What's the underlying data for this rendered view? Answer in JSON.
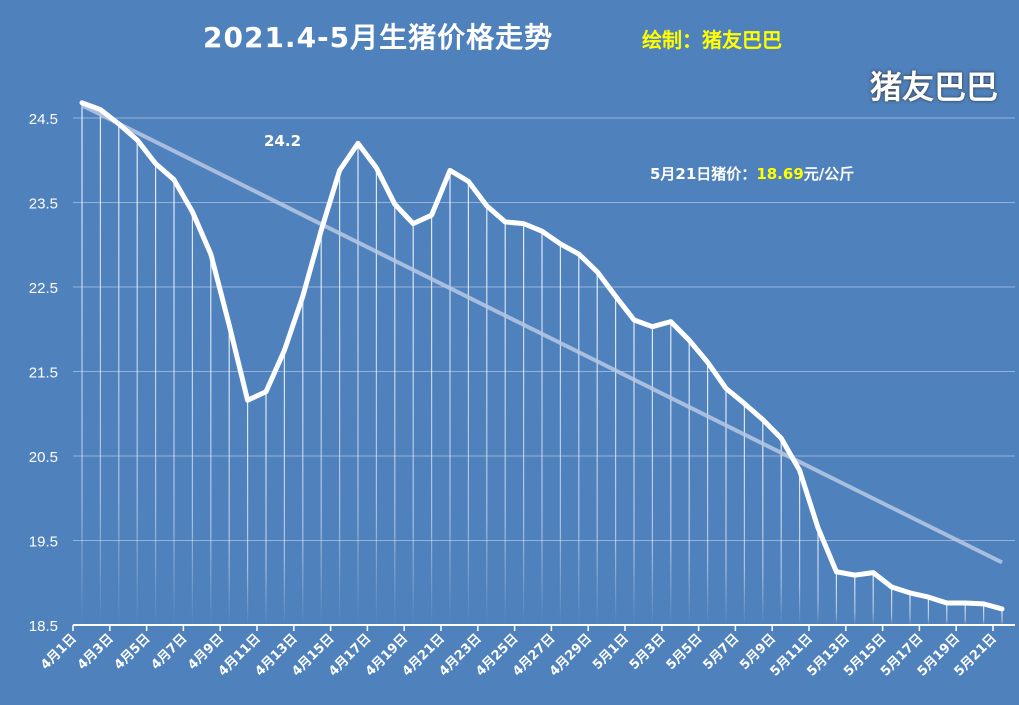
{
  "chart_data": {
    "type": "line",
    "title": "2021.4-5月生猪价格走势",
    "credit": "绘制：猪友巴巴",
    "watermark": "猪友巴巴",
    "xlabel": "",
    "ylabel": "",
    "ylim": [
      18.5,
      24.8
    ],
    "yticks": [
      "24.5",
      "23.5",
      "22.5",
      "21.5",
      "20.5",
      "19.5",
      "18.5"
    ],
    "grid": true,
    "x": [
      "4月1日",
      "4月2日",
      "4月3日",
      "4月4日",
      "4月5日",
      "4月6日",
      "4月7日",
      "4月8日",
      "4月9日",
      "4月10日",
      "4月11日",
      "4月12日",
      "4月13日",
      "4月14日",
      "4月15日",
      "4月16日",
      "4月17日",
      "4月18日",
      "4月19日",
      "4月20日",
      "4月21日",
      "4月22日",
      "4月23日",
      "4月24日",
      "4月25日",
      "4月26日",
      "4月27日",
      "4月28日",
      "4月29日",
      "4月30日",
      "5月1日",
      "5月2日",
      "5月3日",
      "5月4日",
      "5月5日",
      "5月6日",
      "5月7日",
      "5月8日",
      "5月9日",
      "5月10日",
      "5月11日",
      "5月12日",
      "5月13日",
      "5月14日",
      "5月15日",
      "5月16日",
      "5月17日",
      "5月18日",
      "5月19日",
      "5月20日",
      "5月21日"
    ],
    "xtick_labels": [
      "4月1日",
      "4月3日",
      "4月5日",
      "4月7日",
      "4月9日",
      "4月11日",
      "4月13日",
      "4月15日",
      "4月17日",
      "4月19日",
      "4月21日",
      "4月23日",
      "4月25日",
      "4月27日",
      "4月29日",
      "5月1日",
      "5月3日",
      "5月5日",
      "5月7日",
      "5月9日",
      "5月11日",
      "5月13日",
      "5月15日",
      "5月17日",
      "5月19日",
      "5月21日"
    ],
    "series": [
      {
        "values": [
          24.68,
          24.6,
          24.43,
          24.24,
          23.96,
          23.77,
          23.39,
          22.89,
          22.05,
          21.16,
          21.26,
          21.75,
          22.39,
          23.17,
          23.88,
          24.2,
          23.91,
          23.48,
          23.25,
          23.35,
          23.88,
          23.75,
          23.46,
          23.27,
          23.25,
          23.16,
          23.01,
          22.89,
          22.68,
          22.39,
          22.11,
          22.03,
          22.09,
          21.87,
          21.61,
          21.3,
          21.12,
          20.93,
          20.71,
          20.33,
          19.65,
          19.13,
          19.09,
          19.12,
          18.95,
          18.88,
          18.83,
          18.76,
          18.76,
          18.75,
          18.69
        ],
        "color": "#ffffff"
      }
    ],
    "trendline": {
      "type": "linear",
      "start": 24.65,
      "end": 19.24,
      "color": "#b8c9e4"
    },
    "annotations": {
      "peak_label": "24.2",
      "latest_prefix": "5月21日猪价：",
      "latest_value": "18.69",
      "latest_suffix": "元/公斤"
    }
  }
}
